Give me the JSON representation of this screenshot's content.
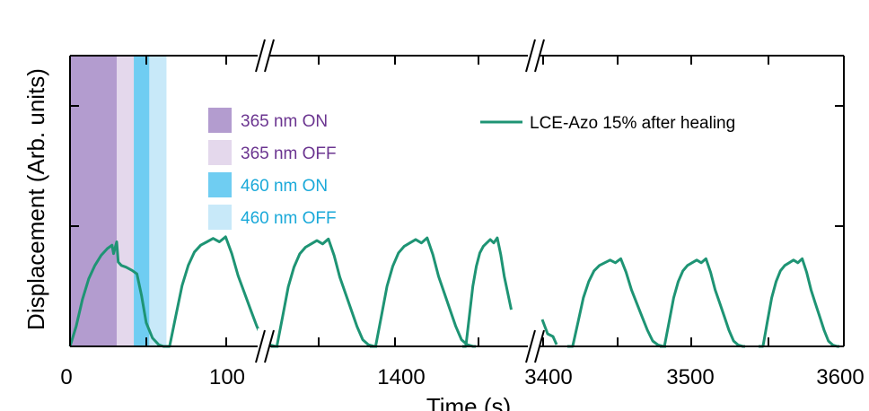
{
  "chart_data": {
    "type": "line",
    "title": "",
    "xlabel": "Time (s)",
    "ylabel": "Displacement (Arb. units)",
    "x_tick_labels": [
      "0",
      "100",
      "1400",
      "3400",
      "3500",
      "3600"
    ],
    "x_axis_breaks": [
      "between 100 and 1400",
      "between 1400 and 3400"
    ],
    "y_ticks_labeled": false,
    "grid": false,
    "legend": {
      "placement": "top-right",
      "entries": [
        {
          "name": "LCE-Azo 15% after healing",
          "color": "#1e9474"
        }
      ]
    },
    "shading_legend": {
      "placement": "top-left",
      "entries": [
        {
          "name": "365 nm ON",
          "color": "#b39ccf",
          "text_color": "#6b3590"
        },
        {
          "name": "365 nm OFF",
          "color": "#e4d8ec",
          "text_color": "#6b3590"
        },
        {
          "name": "460 nm ON",
          "color": "#6fcdf2",
          "text_color": "#1aa9d9"
        },
        {
          "name": "460 nm OFF",
          "color": "#c8e9f9",
          "text_color": "#1aa9d9"
        }
      ]
    },
    "shaded_regions": [
      {
        "name": "365 nm ON",
        "x": [
          0,
          30
        ]
      },
      {
        "name": "365 nm OFF",
        "x": [
          30,
          41
        ]
      },
      {
        "name": "460 nm ON",
        "x": [
          41,
          51
        ]
      },
      {
        "name": "460 nm OFF",
        "x": [
          51,
          62
        ]
      }
    ],
    "series": [
      {
        "name": "LCE-Azo 15% after healing",
        "color": "#1e9474",
        "segments": [
          {
            "x": [
              0,
              4,
              8,
              12,
              16,
              20,
              24,
              27,
              28,
              30,
              31,
              33,
              36,
              40,
              43,
              46,
              49,
              53,
              57,
              60,
              64,
              68,
              72,
              76,
              80,
              84,
              88,
              92,
              96,
              100,
              104,
              108,
              112,
              116,
              120,
              124,
              128,
              132,
              134
            ],
            "y": [
              0.0,
              0.12,
              0.28,
              0.4,
              0.48,
              0.54,
              0.58,
              0.6,
              0.55,
              0.62,
              0.5,
              0.48,
              0.47,
              0.45,
              0.43,
              0.3,
              0.14,
              0.05,
              0.01,
              0.0,
              0.0,
              0.18,
              0.36,
              0.48,
              0.56,
              0.6,
              0.62,
              0.64,
              0.62,
              0.65,
              0.55,
              0.42,
              0.32,
              0.22,
              0.12,
              0.04,
              0.01,
              0.0,
              0.0
            ]
          }
        ]
      }
    ]
  }
}
